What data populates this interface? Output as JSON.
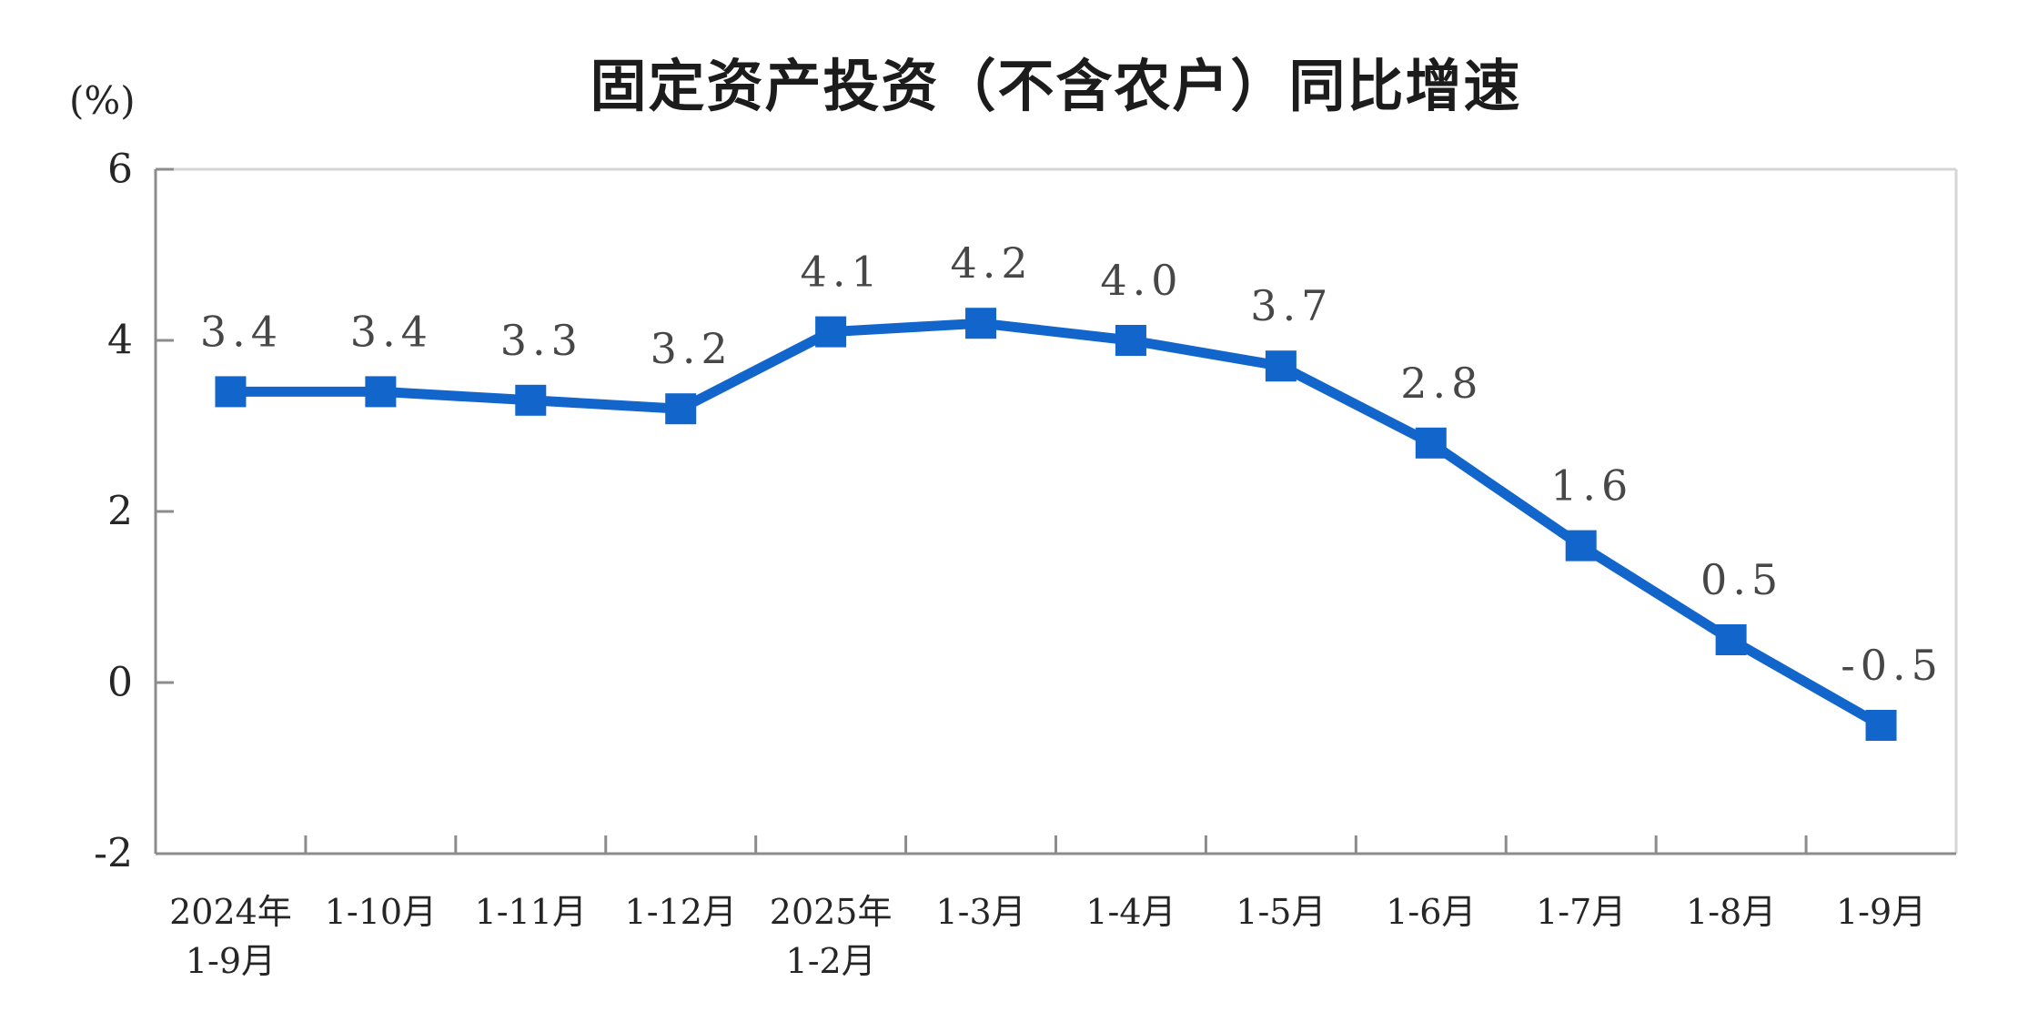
{
  "header": {
    "title": "固定资产投资（不含农户）同比增速",
    "unit_label": "(%)"
  },
  "chart_data": {
    "type": "line",
    "title": "固定资产投资（不含农户）同比增速",
    "ylabel": "(%)",
    "xlabel": "",
    "categories": [
      "2024年\n1-9月",
      "1-10月",
      "1-11月",
      "1-12月",
      "2025年\n1-2月",
      "1-3月",
      "1-4月",
      "1-5月",
      "1-6月",
      "1-7月",
      "1-8月",
      "1-9月"
    ],
    "values": [
      3.4,
      3.4,
      3.3,
      3.2,
      4.1,
      4.2,
      4.0,
      3.7,
      2.8,
      1.6,
      0.5,
      -0.5
    ],
    "labels": [
      "3.4",
      "3.4",
      "3.3",
      "3.2",
      "4.1",
      "4.2",
      "4.0",
      "3.7",
      "2.8",
      "1.6",
      "0.5",
      "-0.5"
    ],
    "ylim": [
      -2,
      6
    ],
    "yticks": [
      6,
      4,
      2,
      0,
      -2
    ],
    "grid": false,
    "legend": "none",
    "marker": "square",
    "colors": {
      "line": "#1266CB",
      "marker": "#1266CB",
      "axis": "#8C8C8C",
      "plot_border": "#D5D5D5",
      "data_label": "#474747",
      "tick_label": "#262626",
      "title": "#1c1c1c"
    }
  }
}
